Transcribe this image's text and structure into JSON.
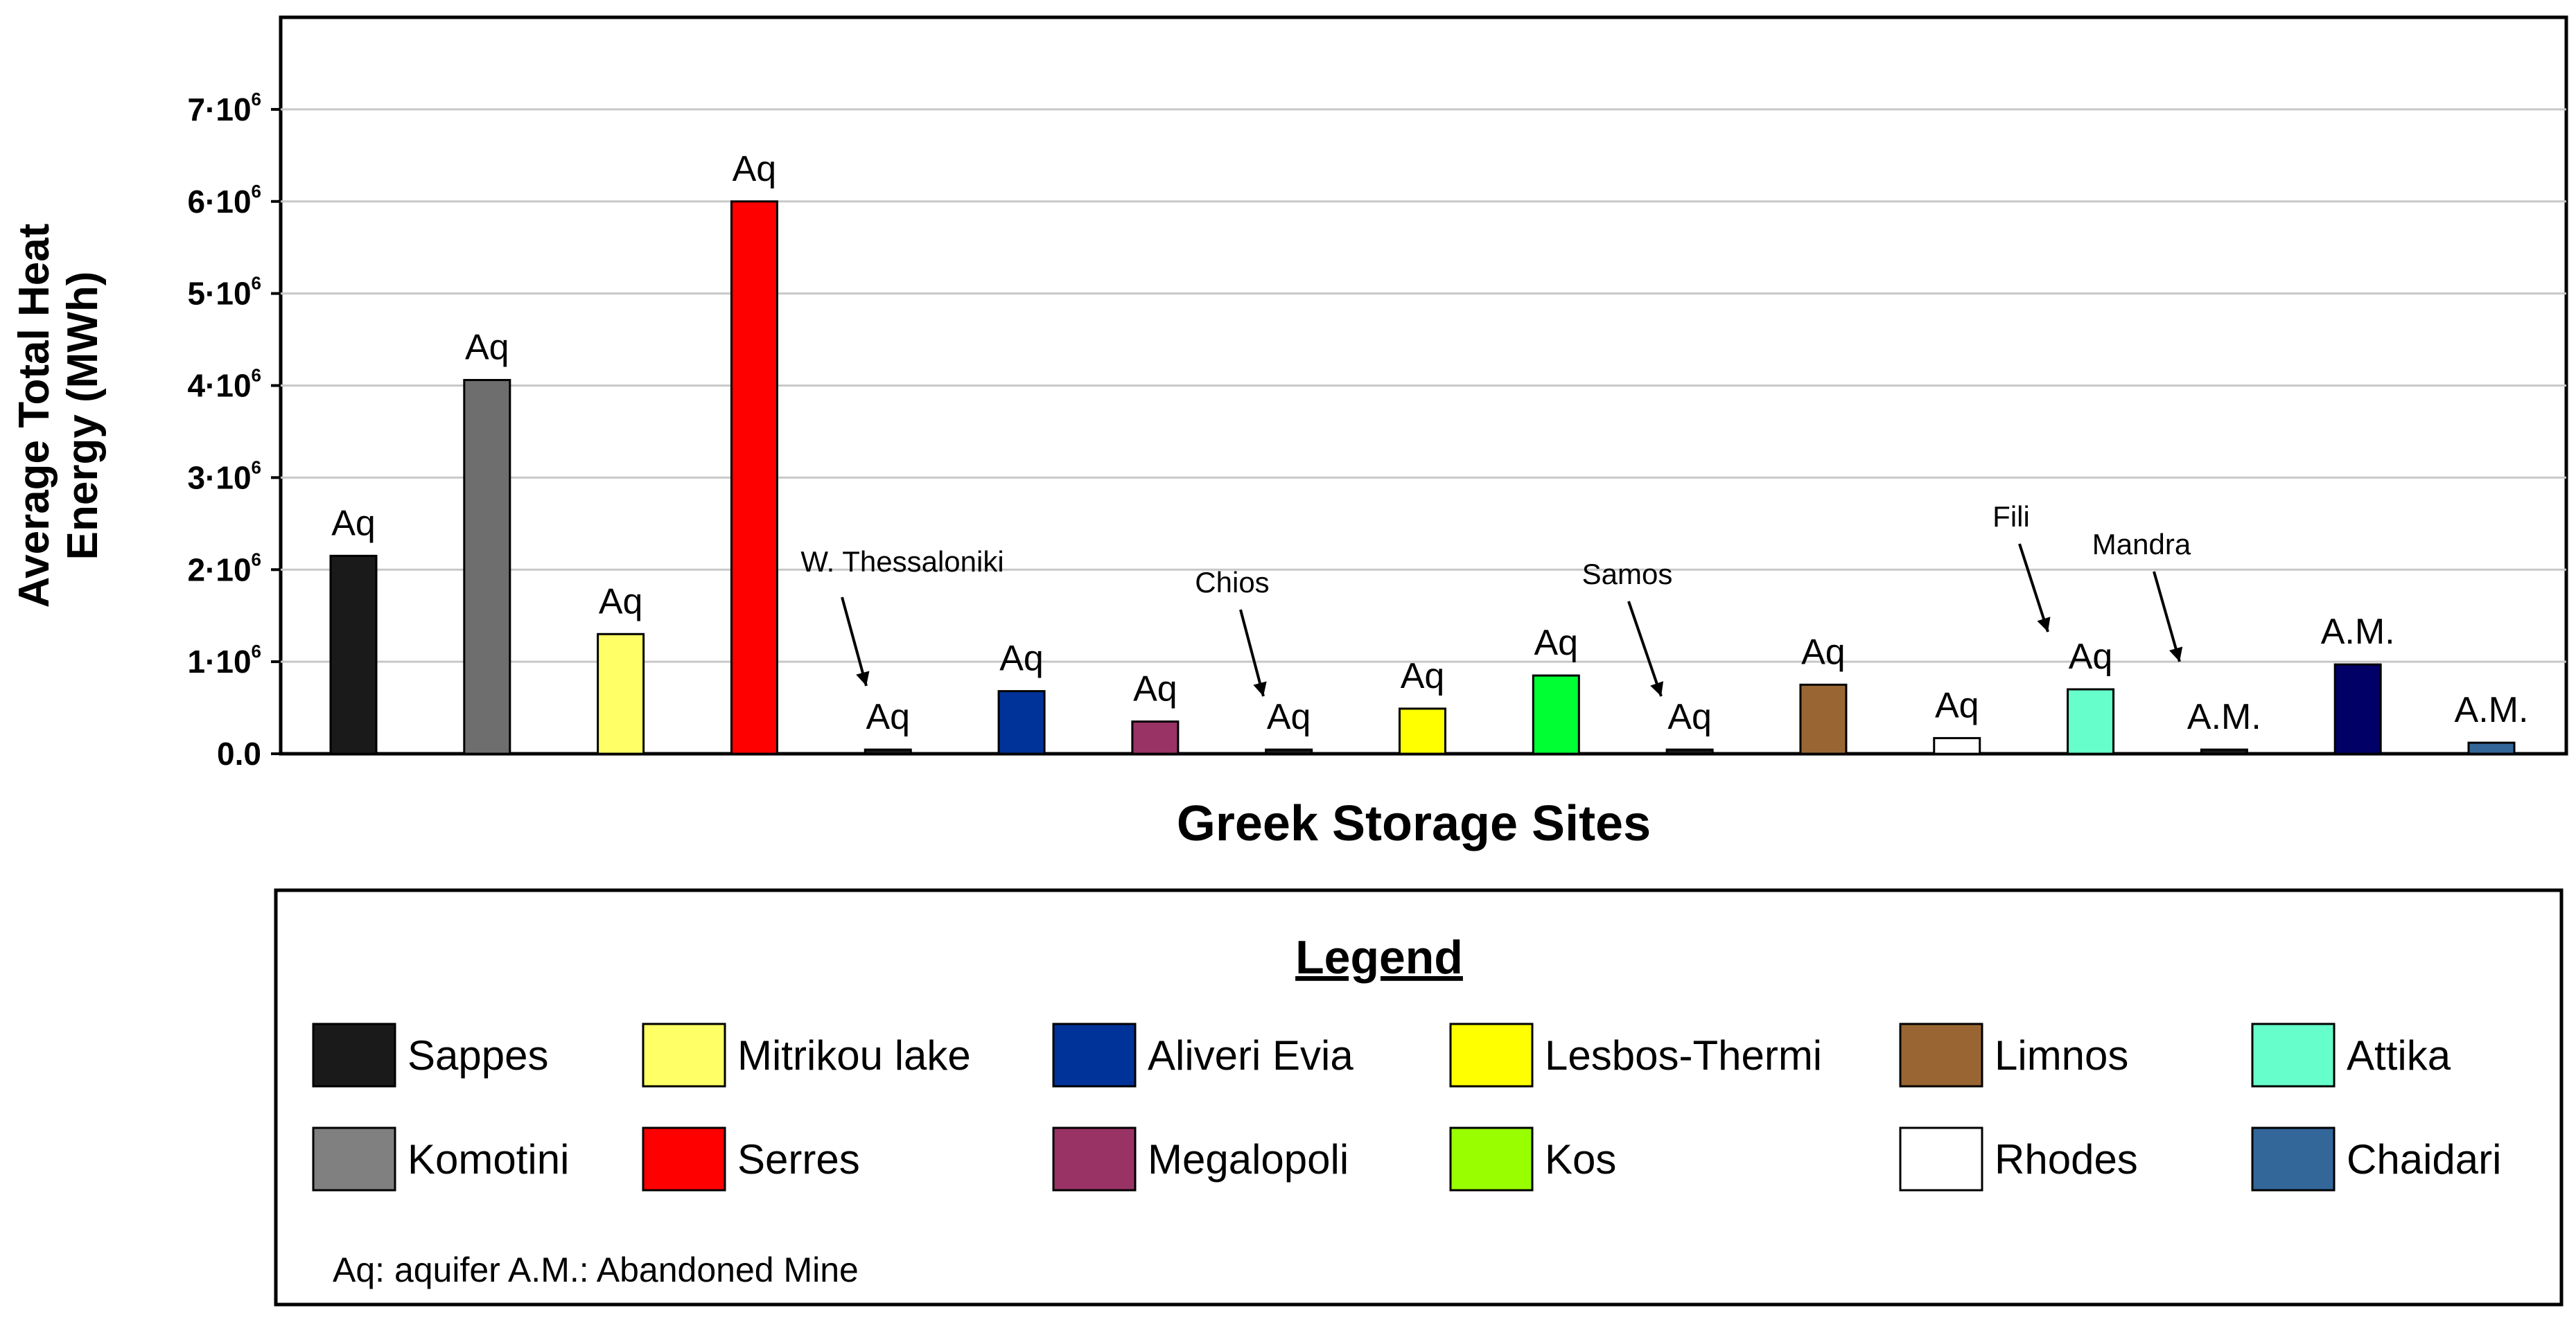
{
  "chart_data": {
    "type": "bar",
    "xlabel": "Greek Storage Sites",
    "ylabel_line1": "Average Total Heat",
    "ylabel_line2": "Energy (MWh)",
    "ylim": [
      0,
      8000000
    ],
    "yticks": [
      {
        "value": 0,
        "base": "0.0",
        "exp": ""
      },
      {
        "value": 1000000,
        "base": "1·10",
        "exp": "6"
      },
      {
        "value": 2000000,
        "base": "2·10",
        "exp": "6"
      },
      {
        "value": 3000000,
        "base": "3·10",
        "exp": "6"
      },
      {
        "value": 4000000,
        "base": "4·10",
        "exp": "6"
      },
      {
        "value": 5000000,
        "base": "5·10",
        "exp": "6"
      },
      {
        "value": 6000000,
        "base": "6·10",
        "exp": "6"
      },
      {
        "value": 7000000,
        "base": "7·10",
        "exp": "6"
      }
    ],
    "grid": true,
    "bars": [
      {
        "name": "Sappes",
        "value": 2150000,
        "color": "#1a1a1a",
        "label": "Aq",
        "site_label": ""
      },
      {
        "name": "Komotini",
        "value": 4060000,
        "color": "#6e6e6e",
        "label": "Aq",
        "site_label": ""
      },
      {
        "name": "Mitrikou lake",
        "value": 1300000,
        "color": "#ffff66",
        "label": "Aq",
        "site_label": ""
      },
      {
        "name": "Serres",
        "value": 6000000,
        "color": "#ff0000",
        "label": "Aq",
        "site_label": ""
      },
      {
        "name": "W. Thessaloniki",
        "value": 40000,
        "color": "#1a1a1a",
        "label": "Aq",
        "site_label": "W. Thessaloniki"
      },
      {
        "name": "Aliveri Evia",
        "value": 680000,
        "color": "#003399",
        "label": "Aq",
        "site_label": ""
      },
      {
        "name": "Megalopoli",
        "value": 350000,
        "color": "#993366",
        "label": "Aq",
        "site_label": ""
      },
      {
        "name": "Chios",
        "value": 40000,
        "color": "#1a1a1a",
        "label": "Aq",
        "site_label": "Chios"
      },
      {
        "name": "Lesbos-Thermi",
        "value": 490000,
        "color": "#ffff00",
        "label": "Aq",
        "site_label": ""
      },
      {
        "name": "Kos",
        "value": 850000,
        "color": "#00ff33",
        "label": "Aq",
        "site_label": ""
      },
      {
        "name": "Samos",
        "value": 40000,
        "color": "#1a1a1a",
        "label": "Aq",
        "site_label": "Samos"
      },
      {
        "name": "Limnos",
        "value": 750000,
        "color": "#996633",
        "label": "Aq",
        "site_label": ""
      },
      {
        "name": "Rhodes",
        "value": 170000,
        "color": "#ffffff",
        "label": "Aq",
        "site_label": ""
      },
      {
        "name": "Attika",
        "value": 700000,
        "color": "#66ffcc",
        "label": "Aq",
        "site_label": "Fili"
      },
      {
        "name": "Mandra",
        "value": 40000,
        "color": "#1a1a1a",
        "label": "A.M.",
        "site_label": "Mandra"
      },
      {
        "name": "A.M. site",
        "value": 970000,
        "color": "#000066",
        "label": "A.M.",
        "site_label": ""
      },
      {
        "name": "Chaidari",
        "value": 120000,
        "color": "#336699",
        "label": "A.M.",
        "site_label": ""
      }
    ],
    "legend": {
      "title": "Legend",
      "placement": "bottom",
      "items": [
        {
          "label": "Sappes",
          "color": "#1a1a1a"
        },
        {
          "label": "Mitrikou lake",
          "color": "#ffff66"
        },
        {
          "label": "Aliveri Evia",
          "color": "#003399"
        },
        {
          "label": "Lesbos-Thermi",
          "color": "#ffff00"
        },
        {
          "label": "Limnos",
          "color": "#996633"
        },
        {
          "label": "Attika",
          "color": "#66ffcc"
        },
        {
          "label": "Komotini",
          "color": "#808080"
        },
        {
          "label": "Serres",
          "color": "#ff0000"
        },
        {
          "label": "Megalopoli",
          "color": "#993366"
        },
        {
          "label": "Kos",
          "color": "#99ff00"
        },
        {
          "label": "Rhodes",
          "color": "#ffffff"
        },
        {
          "label": "Chaidari",
          "color": "#336699"
        }
      ],
      "note": "Aq: aquifer A.M.: Abandoned Mine"
    }
  }
}
